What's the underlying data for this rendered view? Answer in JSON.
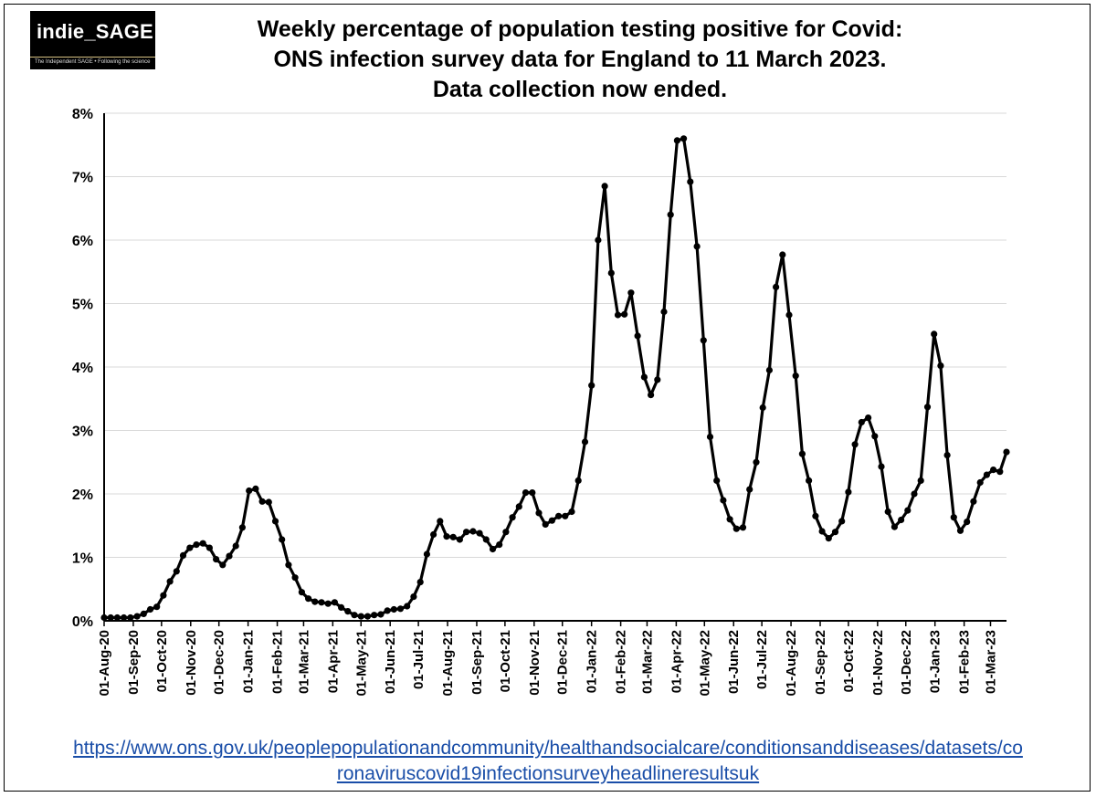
{
  "logo": {
    "name": "indie_SAGE",
    "tagline": "The Independent SAGE • Following the science"
  },
  "source_link": {
    "line1": "https://www.ons.gov.uk/peoplepopulationandcommunity/healthandsocialcare/conditionsanddiseases/datasets/co",
    "line2": "ronaviruscovid19infectionsurveyheadlineresultsuk"
  },
  "colors": {
    "line": "#000000",
    "grid": "#d9d9d9",
    "link": "#1a4ea8",
    "logo_bg": "#000000"
  },
  "chart_data": {
    "type": "line",
    "title_lines": [
      "Weekly percentage of population testing positive for Covid:",
      "ONS infection survey data for England to 11 March 2023.",
      "Data collection now ended."
    ],
    "xlabel": "",
    "ylabel": "",
    "ylim": [
      0,
      8
    ],
    "yticks": [
      "0%",
      "1%",
      "2%",
      "3%",
      "4%",
      "5%",
      "6%",
      "7%",
      "8%"
    ],
    "grid": true,
    "legend": "none",
    "x_range": [
      "2020-08-01",
      "2023-03-18"
    ],
    "x_tick_dates": [
      "2020-08-01",
      "2020-09-01",
      "2020-10-01",
      "2020-11-01",
      "2020-12-01",
      "2021-01-01",
      "2021-02-01",
      "2021-03-01",
      "2021-04-01",
      "2021-05-01",
      "2021-06-01",
      "2021-07-01",
      "2021-08-01",
      "2021-09-01",
      "2021-10-01",
      "2021-11-01",
      "2021-12-01",
      "2022-01-01",
      "2022-02-01",
      "2022-03-01",
      "2022-04-01",
      "2022-05-01",
      "2022-06-01",
      "2022-07-01",
      "2022-08-01",
      "2022-09-01",
      "2022-10-01",
      "2022-11-01",
      "2022-12-01",
      "2023-01-01",
      "2023-02-01",
      "2023-03-01"
    ],
    "x_tick_labels": [
      "01-Aug-20",
      "01-Sep-20",
      "01-Oct-20",
      "01-Nov-20",
      "01-Dec-20",
      "01-Jan-21",
      "01-Feb-21",
      "01-Mar-21",
      "01-Apr-21",
      "01-May-21",
      "01-Jun-21",
      "01-Jul-21",
      "01-Aug-21",
      "01-Sep-21",
      "01-Oct-21",
      "01-Nov-21",
      "01-Dec-21",
      "01-Jan-22",
      "01-Feb-22",
      "01-Mar-22",
      "01-Apr-22",
      "01-May-22",
      "01-Jun-22",
      "01-Jul-22",
      "01-Aug-22",
      "01-Sep-22",
      "01-Oct-22",
      "01-Nov-22",
      "01-Dec-22",
      "01-Jan-23",
      "01-Feb-23",
      "01-Mar-23"
    ],
    "series": [
      {
        "name": "Percentage testing positive",
        "start_date": "2020-08-01",
        "interval_days": 7,
        "values": [
          0.05,
          0.05,
          0.05,
          0.05,
          0.05,
          0.07,
          0.11,
          0.18,
          0.22,
          0.4,
          0.62,
          0.78,
          1.03,
          1.15,
          1.2,
          1.22,
          1.15,
          0.97,
          0.88,
          1.02,
          1.18,
          1.47,
          2.05,
          2.08,
          1.88,
          1.87,
          1.57,
          1.28,
          0.88,
          0.68,
          0.45,
          0.35,
          0.3,
          0.29,
          0.27,
          0.29,
          0.21,
          0.15,
          0.09,
          0.07,
          0.07,
          0.09,
          0.1,
          0.16,
          0.18,
          0.19,
          0.23,
          0.38,
          0.61,
          1.05,
          1.36,
          1.57,
          1.33,
          1.32,
          1.28,
          1.4,
          1.41,
          1.38,
          1.28,
          1.13,
          1.2,
          1.4,
          1.63,
          1.8,
          2.02,
          2.02,
          1.7,
          1.52,
          1.58,
          1.65,
          1.65,
          1.72,
          2.21,
          2.82,
          3.71,
          6.0,
          6.85,
          5.48,
          4.82,
          4.83,
          5.17,
          4.49,
          3.84,
          3.56,
          3.8,
          4.87,
          6.4,
          7.57,
          7.6,
          6.92,
          5.9,
          4.42,
          2.9,
          2.21,
          1.9,
          1.6,
          1.45,
          1.47,
          2.07,
          2.5,
          3.36,
          3.95,
          5.26,
          5.77,
          4.82,
          3.86,
          2.63,
          2.21,
          1.65,
          1.41,
          1.3,
          1.4,
          1.57,
          2.03,
          2.78,
          3.13,
          3.2,
          2.91,
          2.43,
          1.72,
          1.48,
          1.59,
          1.74,
          2.0,
          2.21,
          3.37,
          4.52,
          4.02,
          2.61,
          1.63,
          1.42,
          1.56,
          1.88,
          2.18,
          2.3,
          2.38,
          2.35,
          2.66
        ]
      }
    ]
  }
}
